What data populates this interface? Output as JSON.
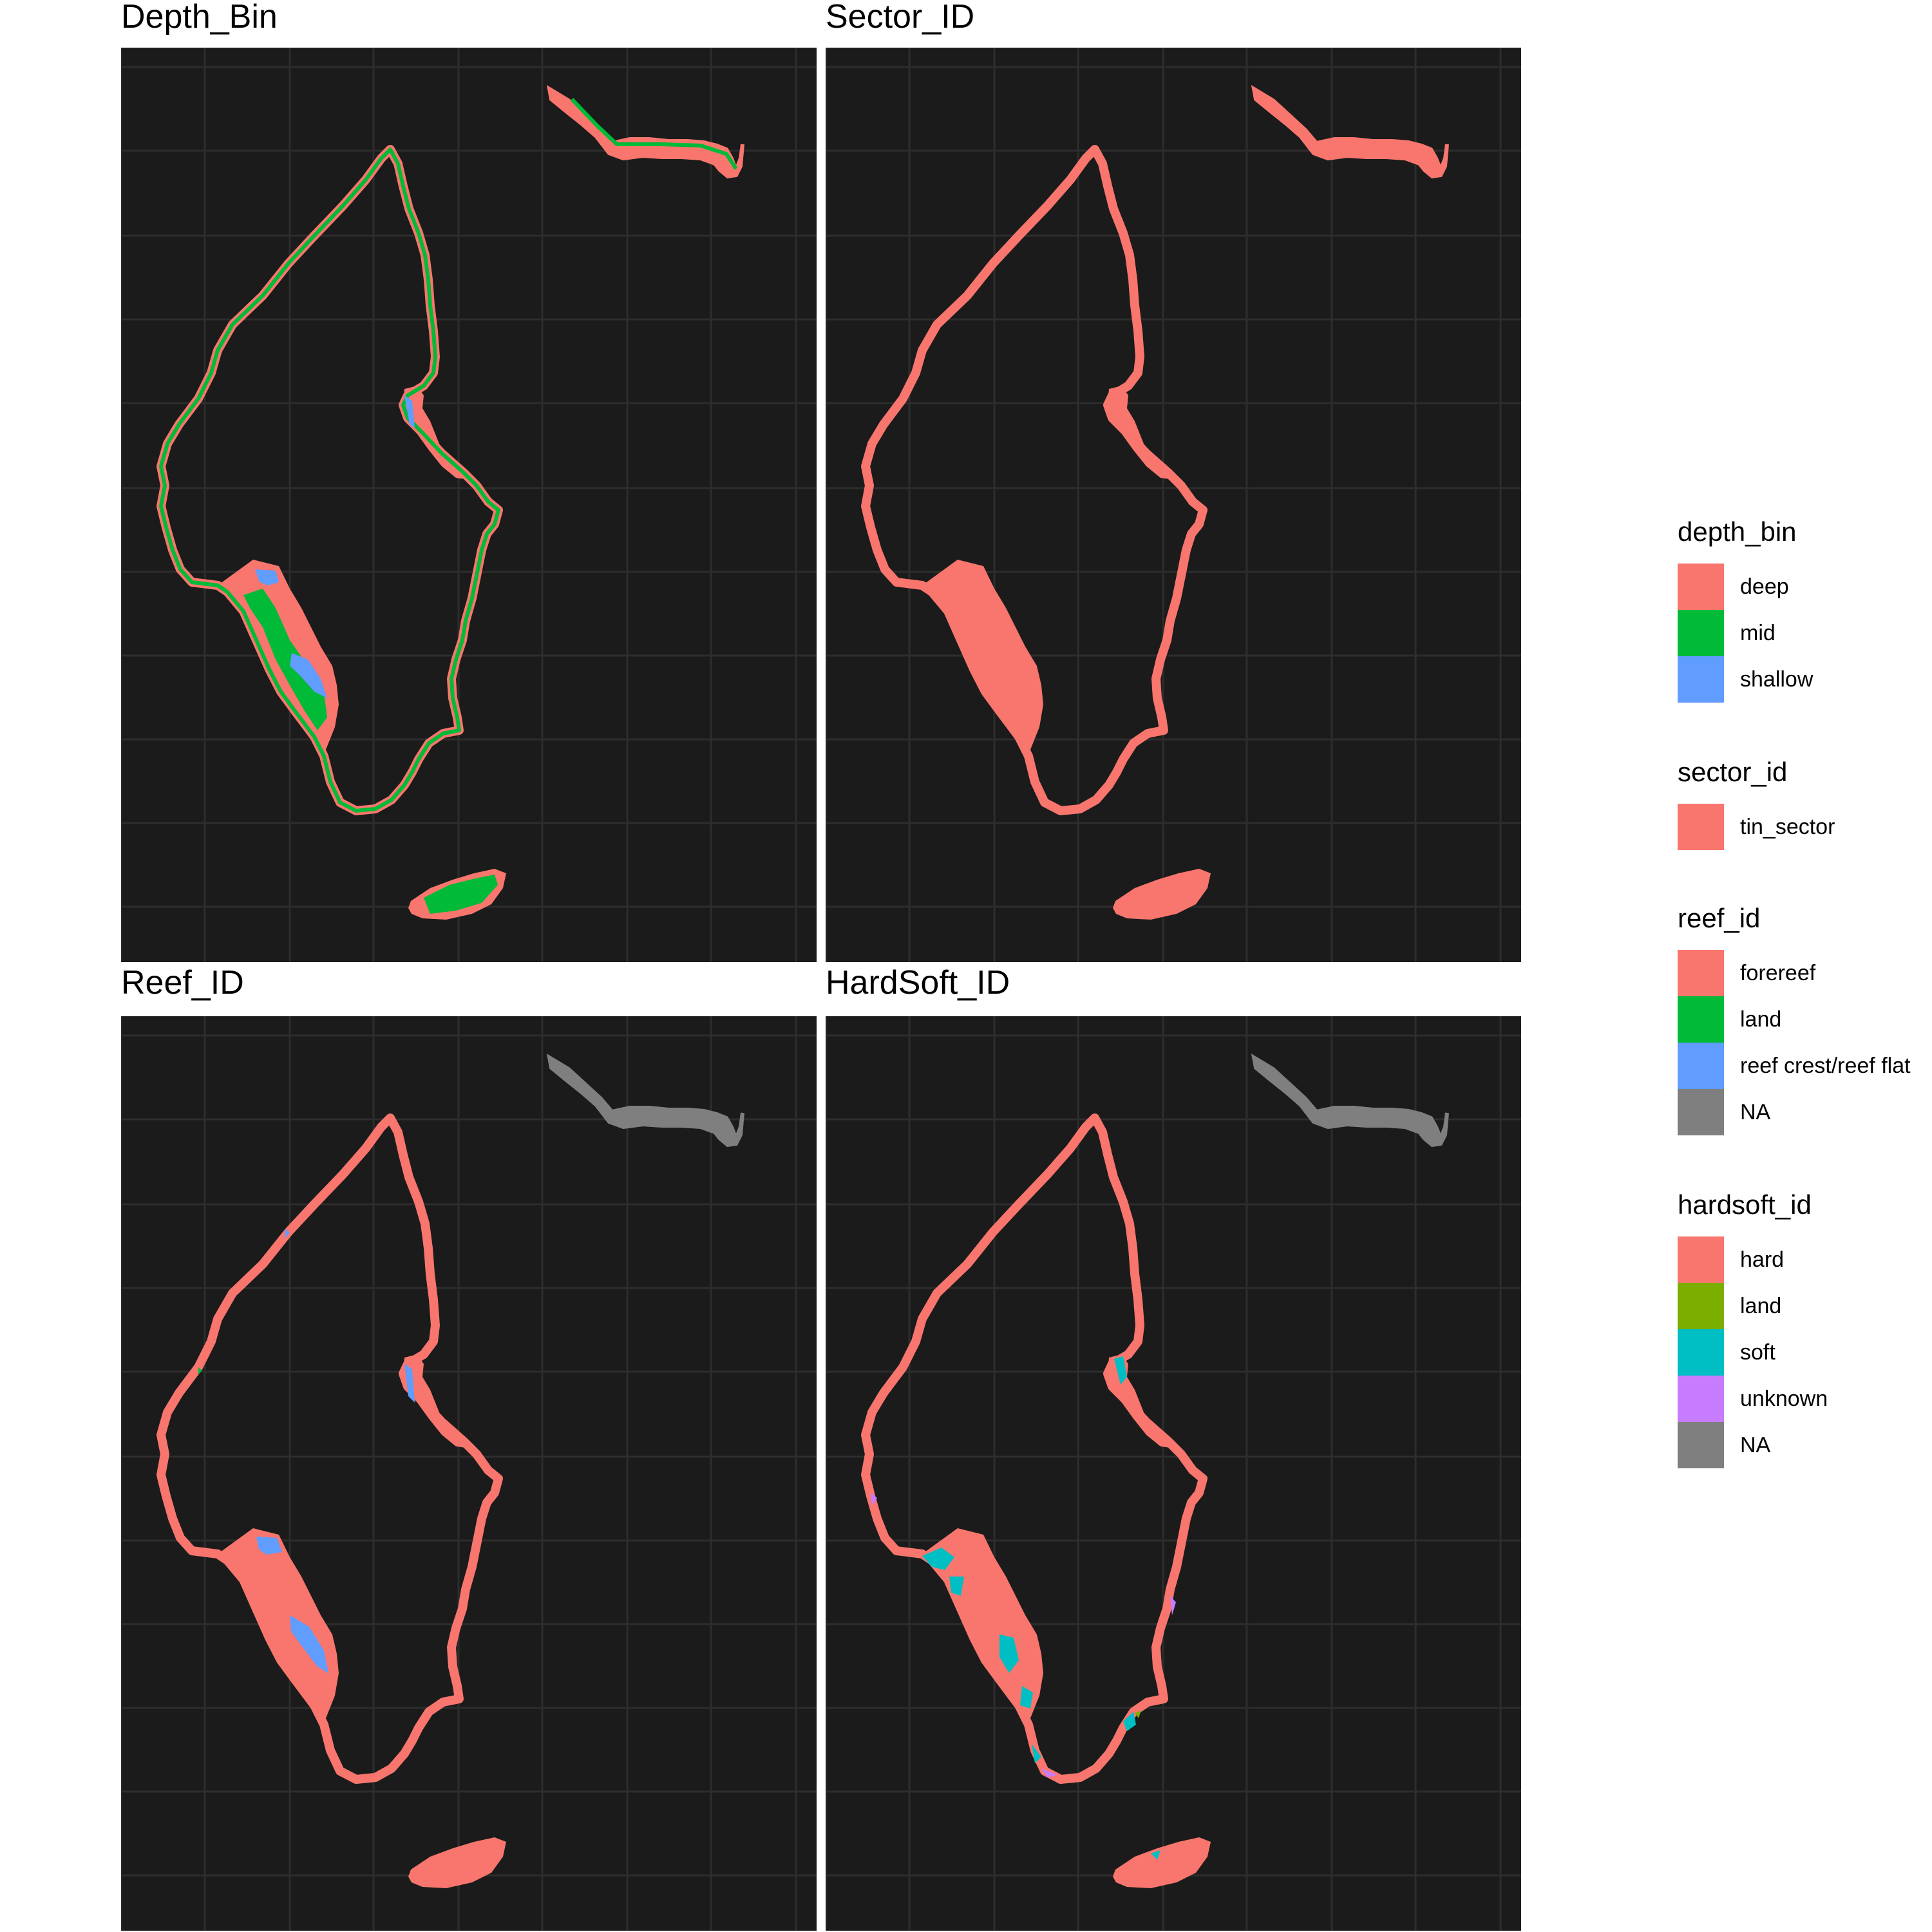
{
  "panels": [
    {
      "title": "Depth_Bin",
      "scheme": "depth"
    },
    {
      "title": "Sector_ID",
      "scheme": "sector"
    },
    {
      "title": "Reef_ID",
      "scheme": "reef"
    },
    {
      "title": "HardSoft_ID",
      "scheme": "hardsoft"
    }
  ],
  "legends": [
    {
      "title": "depth_bin",
      "items": [
        {
          "label": "deep",
          "color": "#F8766D"
        },
        {
          "label": "mid",
          "color": "#00BA38"
        },
        {
          "label": "shallow",
          "color": "#619CFF"
        }
      ]
    },
    {
      "title": "sector_id",
      "items": [
        {
          "label": "tin_sector",
          "color": "#F8766D"
        }
      ]
    },
    {
      "title": "reef_id",
      "items": [
        {
          "label": "forereef",
          "color": "#F8766D"
        },
        {
          "label": "land",
          "color": "#00BA38"
        },
        {
          "label": "reef crest/reef flat",
          "color": "#619CFF"
        },
        {
          "label": "NA",
          "color": "#7F7F7F"
        }
      ]
    },
    {
      "title": "hardsoft_id",
      "items": [
        {
          "label": "hard",
          "color": "#F8766D"
        },
        {
          "label": "land",
          "color": "#7CAE00"
        },
        {
          "label": "soft",
          "color": "#00BFC4"
        },
        {
          "label": "unknown",
          "color": "#C77CFF"
        },
        {
          "label": "NA",
          "color": "#7F7F7F"
        }
      ]
    }
  ],
  "panel_background": "#1b1b1b",
  "grid_color": "#2d2d2d"
}
